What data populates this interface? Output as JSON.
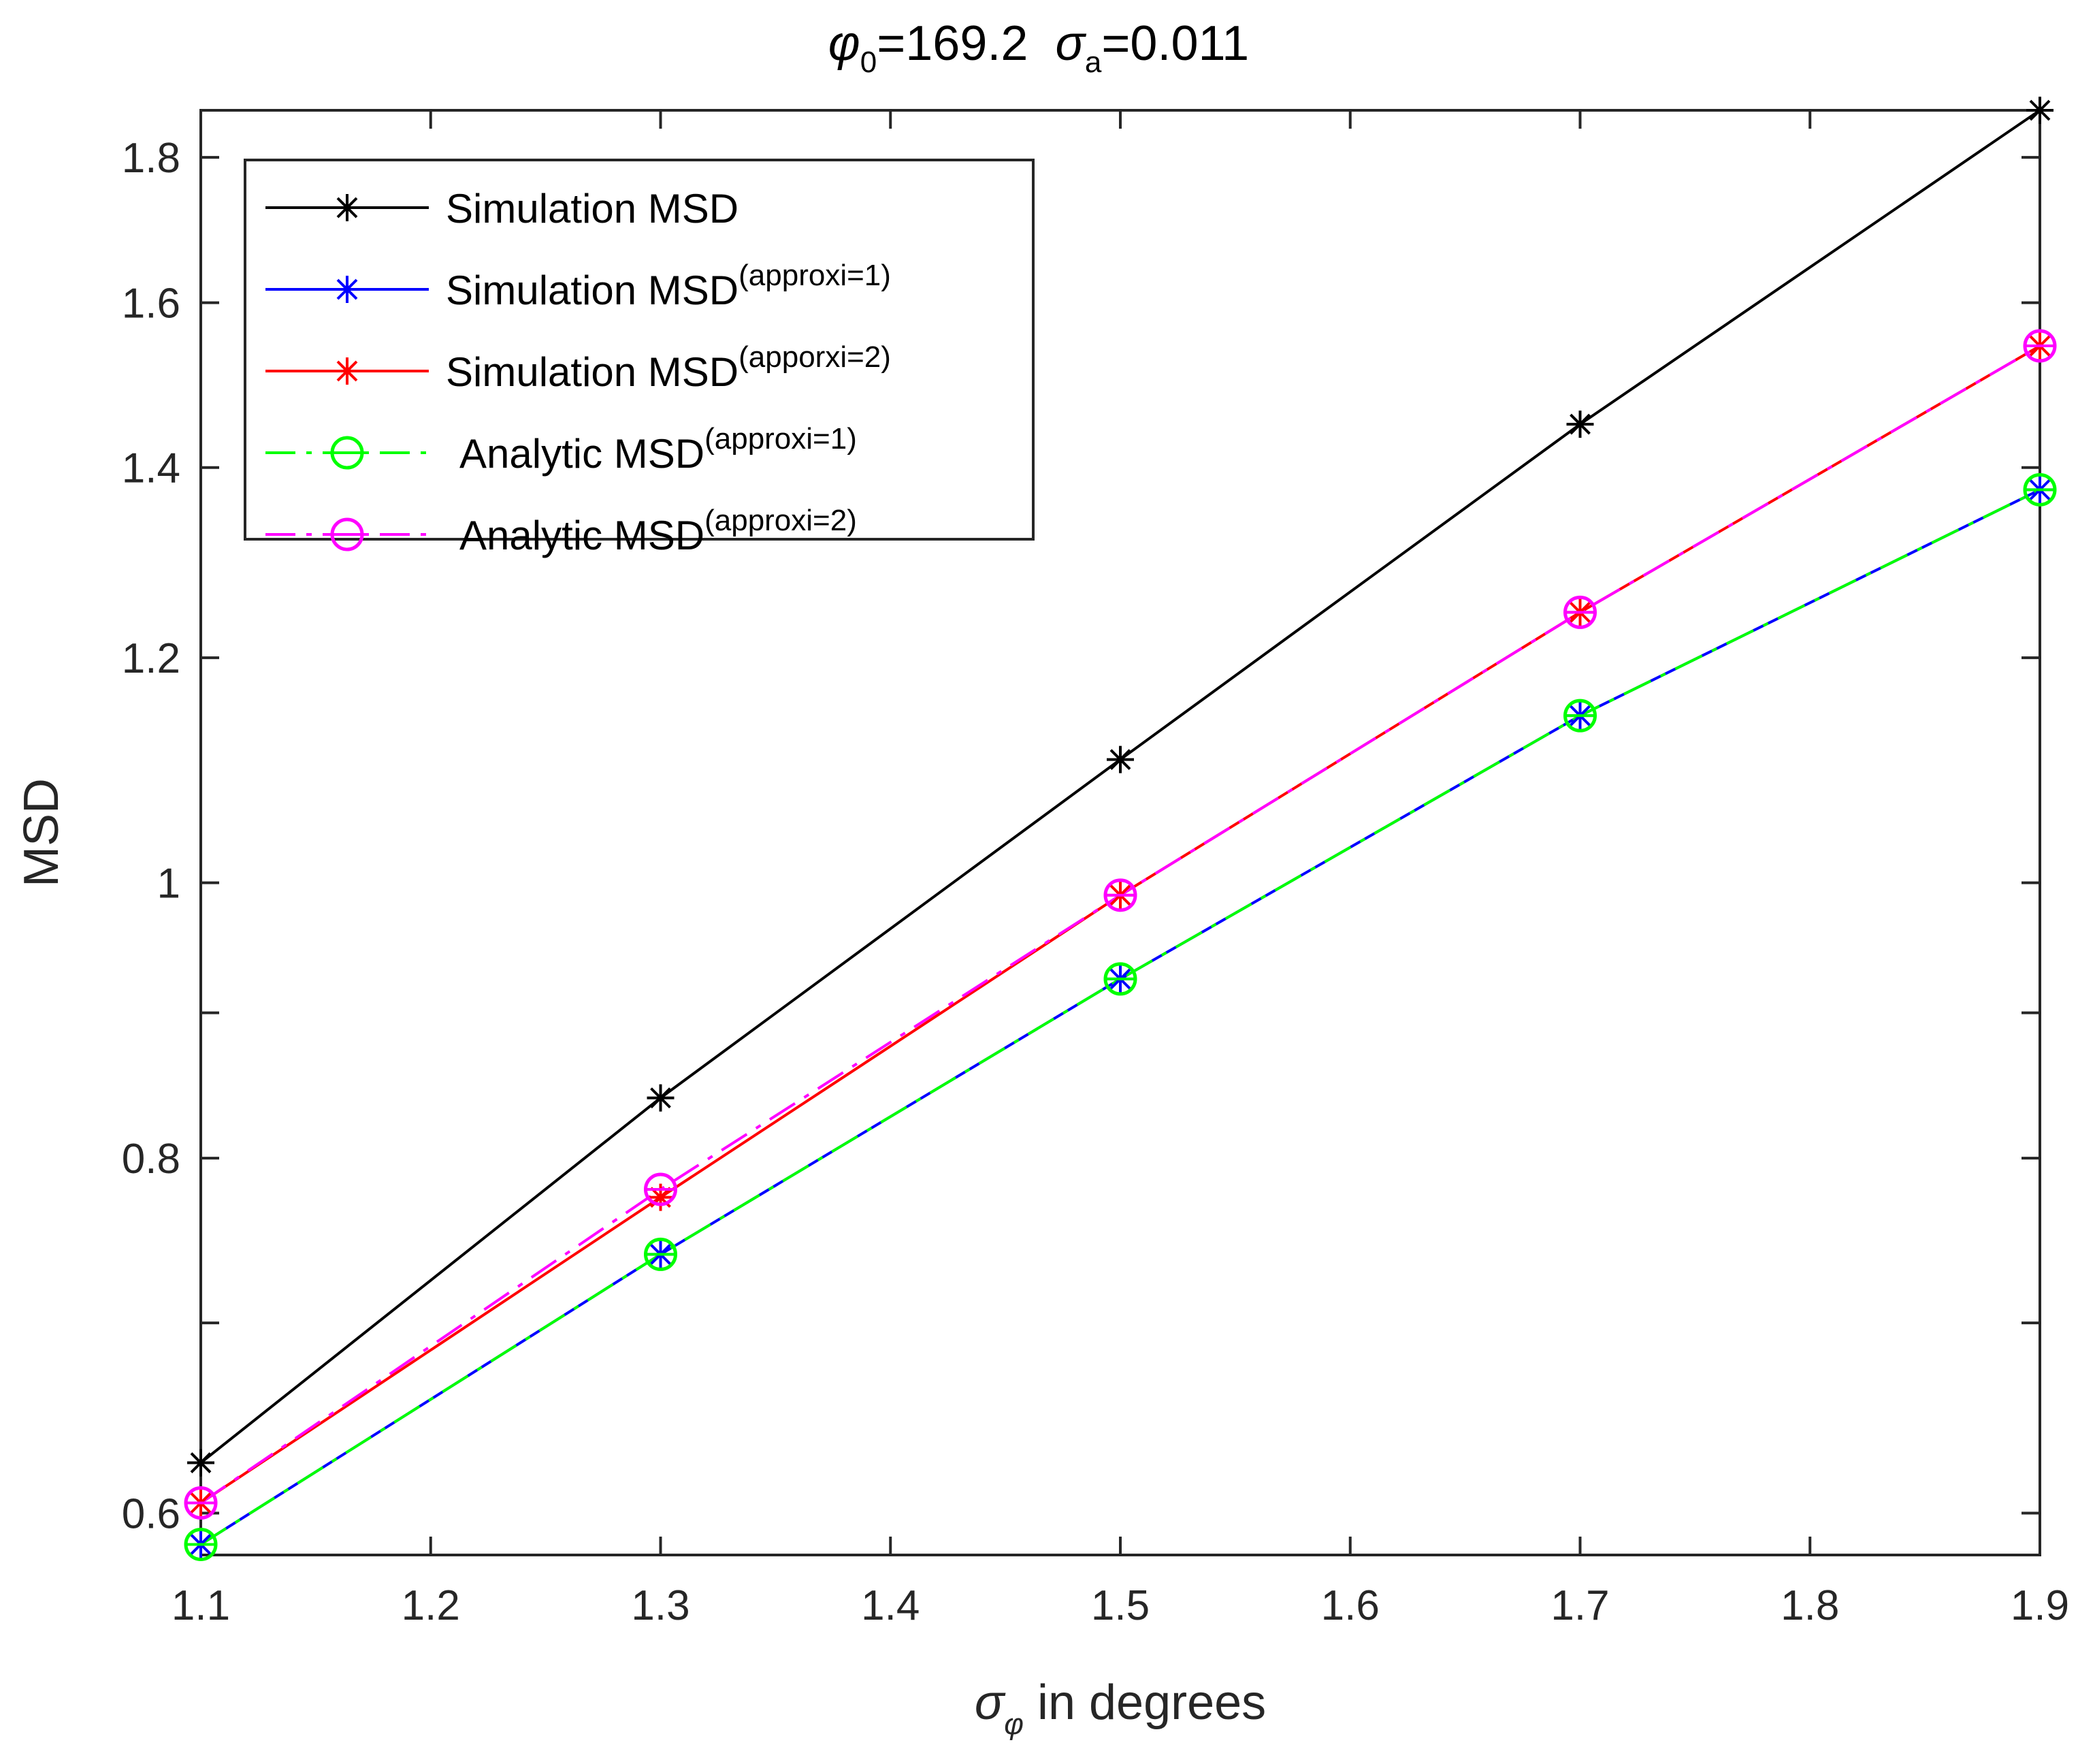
{
  "chart_data": {
    "type": "line",
    "title": {
      "phi_symbol": "φ",
      "phi_subscript": "0",
      "phi_value": "=169.2",
      "sigma_symbol": "σ",
      "sigma_subscript": "a",
      "sigma_value": "=0.011"
    },
    "xlabel": {
      "symbol": "σ",
      "subscript": "φ",
      "text": " in degrees"
    },
    "ylabel": "MSD",
    "y_scale": "log",
    "xlim": [
      1.1,
      1.9
    ],
    "ylim": [
      0.58,
      1.87
    ],
    "x_ticks": [
      1.1,
      1.2,
      1.3,
      1.4,
      1.5,
      1.6,
      1.7,
      1.8,
      1.9
    ],
    "x_tick_labels": [
      "1.1",
      "1.2",
      "1.3",
      "1.4",
      "1.5",
      "1.6",
      "1.7",
      "1.8",
      "1.9"
    ],
    "y_ticks": [
      0.6,
      0.8,
      1.0,
      1.2,
      1.4,
      1.6,
      1.8
    ],
    "y_tick_labels": [
      "0.6",
      "0.8",
      "1",
      "1.2",
      "1.4",
      "1.6",
      "1.8"
    ],
    "y_minor_ticks": [
      0.7,
      0.9
    ],
    "x": [
      1.1,
      1.3,
      1.5,
      1.7,
      1.9
    ],
    "series": [
      {
        "name": "Simulation MSD",
        "label_main": "Simulation MSD",
        "label_sup": "",
        "color": "#000000",
        "marker": "asterisk",
        "dash": "solid",
        "values": [
          0.625,
          0.84,
          1.105,
          1.45,
          1.87
        ]
      },
      {
        "name": "Simulation MSD (approxi=1)",
        "label_main": "Simulation MSD",
        "label_sup": "(approxi=1)",
        "color": "#0000ff",
        "marker": "asterisk",
        "dash": "solid",
        "values": [
          0.585,
          0.74,
          0.925,
          1.145,
          1.375
        ]
      },
      {
        "name": "Simulation MSD (apporxi=2)",
        "label_main": "Simulation MSD",
        "label_sup": "(apporxi=2)",
        "color": "#ff0000",
        "marker": "asterisk",
        "dash": "solid",
        "values": [
          0.605,
          0.775,
          0.99,
          1.245,
          1.545
        ]
      },
      {
        "name": "Analytic MSD (approxi=1)",
        "label_main": "Analytic  MSD",
        "label_sup": "(approxi=1)",
        "color": "#00ff00",
        "marker": "circle",
        "dash": "dashdot",
        "values": [
          0.585,
          0.74,
          0.925,
          1.145,
          1.375
        ]
      },
      {
        "name": "Analytic MSD (approxi=2)",
        "label_main": "Analytic  MSD",
        "label_sup": "(approxi=2)",
        "color": "#ff00ff",
        "marker": "circle",
        "dash": "dashdot",
        "values": [
          0.605,
          0.78,
          0.99,
          1.245,
          1.545
        ]
      }
    ],
    "legend_position": "top-left",
    "grid": false
  }
}
